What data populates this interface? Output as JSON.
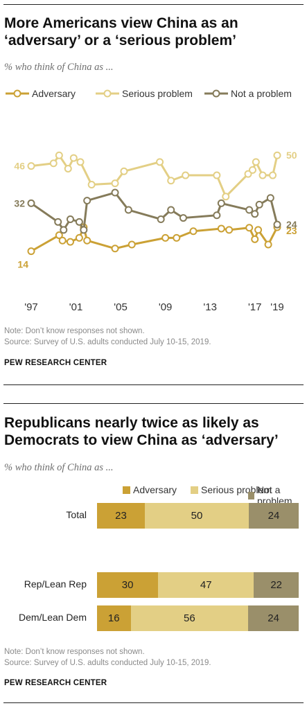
{
  "top": {
    "title_line1": "More Americans view China as an",
    "title_line2": "‘adversary’ or a ‘serious problem’",
    "subtitle": "% who think of China as ...",
    "note": "Note: Don’t know responses not shown.",
    "source": "Source: Survey of U.S. adults conducted July 10-15, 2019.",
    "brand": "PEW RESEARCH CENTER"
  },
  "bottom": {
    "title_line1": "Republicans nearly twice as likely as",
    "title_line2": "Democrats to view China as ‘adversary’",
    "subtitle": "% who think of China as ...",
    "note": "Note: Don’t know responses not shown.",
    "source": "Source: Survey of U.S. adults conducted July 10-15, 2019.",
    "brand": "PEW RESEARCH CENTER"
  },
  "chart_data": [
    {
      "type": "line",
      "xlim": [
        1997,
        2019
      ],
      "ylim": [
        10,
        55
      ],
      "x_ticks": [
        1997,
        2001,
        2005,
        2009,
        2013,
        2017,
        2019
      ],
      "x_tick_labels": [
        "'97",
        "'01",
        "'05",
        "'09",
        "'13",
        "'17",
        "'19"
      ],
      "legend": "top",
      "series": [
        {
          "name": "Adversary",
          "color": "#cba135",
          "x": [
            1997,
            1999.5,
            1999.8,
            2000.5,
            2001.3,
            2001.7,
            2002,
            2004.5,
            2006,
            2009,
            2010,
            2011.5,
            2014,
            2014.7,
            2016.5,
            2017,
            2017.3,
            2018.2,
            2019
          ],
          "y": [
            14,
            20,
            18,
            17.5,
            19,
            23,
            18,
            15,
            16.5,
            19,
            19,
            21.5,
            22.5,
            22,
            22.8,
            18.5,
            22,
            16.5,
            23
          ],
          "start_label": "14",
          "end_label": "23"
        },
        {
          "name": "Serious problem",
          "color": "#e3cf85",
          "x": [
            1997,
            1999,
            1999.5,
            2000.3,
            2000.8,
            2001.4,
            2002.4,
            2004.5,
            2005.3,
            2008.5,
            2009.5,
            2010.8,
            2013.6,
            2014.4,
            2016.4,
            2016.8,
            2017.1,
            2017.7,
            2018.6,
            2019
          ],
          "y": [
            46,
            47,
            50,
            45,
            49,
            47.5,
            39,
            39.5,
            44,
            47.5,
            40.5,
            42.5,
            42.5,
            34.5,
            43,
            44.5,
            47.5,
            42.5,
            42.5,
            50
          ],
          "start_label": "46",
          "end_label": "50"
        },
        {
          "name": "Not a problem",
          "color": "#857b5a",
          "x": [
            1997,
            1999.4,
            1999.9,
            2000.5,
            2001.3,
            2001.7,
            2002,
            2004.5,
            2005.7,
            2008.6,
            2009.5,
            2010.6,
            2013.6,
            2014,
            2016.5,
            2017,
            2017.4,
            2018.4,
            2019
          ],
          "y": [
            32,
            25,
            22,
            26,
            25,
            22,
            33,
            36,
            29.5,
            26,
            29.5,
            26.5,
            27.5,
            32,
            29.5,
            28,
            31.5,
            34,
            24
          ],
          "start_label": "32",
          "end_label": "24"
        }
      ]
    },
    {
      "type": "bar",
      "stacked": true,
      "orientation": "horizontal",
      "categories": [
        "Total",
        "Rep/Lean Rep",
        "Dem/Lean Dem"
      ],
      "series": [
        {
          "name": "Adversary",
          "color": "#cba135",
          "values": [
            23,
            30,
            16
          ]
        },
        {
          "name": "Serious problem",
          "color": "#e3cf85",
          "values": [
            50,
            47,
            56
          ]
        },
        {
          "name": "Not a problem",
          "color": "#9a8f6a",
          "values": [
            24,
            22,
            24
          ]
        }
      ],
      "legend": "top-right"
    }
  ]
}
